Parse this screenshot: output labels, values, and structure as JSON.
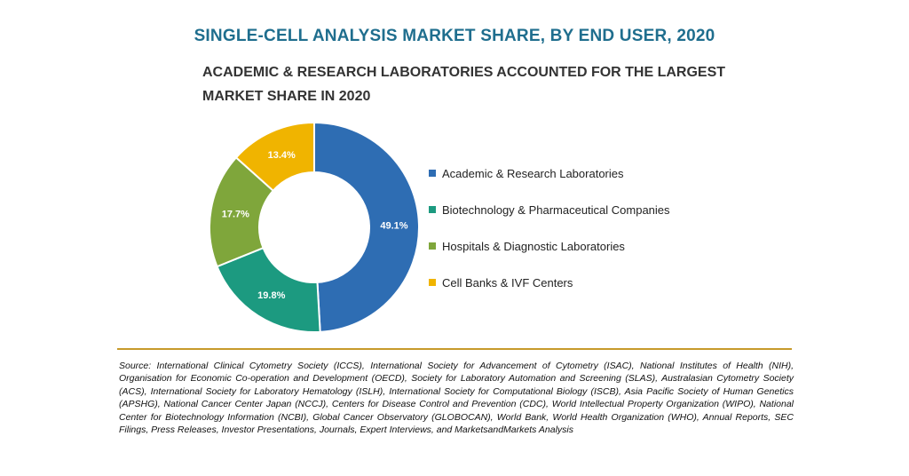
{
  "title": "SINGLE-CELL ANALYSIS MARKET SHARE, BY END USER, 2020",
  "subtitle_line1": "ACADEMIC & RESEARCH LABORATORIES ACCOUNTED FOR THE LARGEST",
  "subtitle_line2": "MARKET SHARE IN 2020",
  "source": "Source: International Clinical Cytometry Society (ICCS), International Society for Advancement of Cytometry (ISAC), National Institutes of Health (NIH), Organisation for Economic Co-operation and Development (OECD), Society for Laboratory Automation and Screening (SLAS), Australasian Cytometry Society (ACS), International Society for Laboratory Hematology (ISLH), International Society for Computational Biology (ISCB), Asia Pacific Society of Human Genetics (APSHG), National Cancer Center Japan (NCCJ), Centers for Disease Control and Prevention (CDC), World Intellectual Property Organization (WIPO), National Center for Biotechnology Information (NCBI), Global Cancer Observatory (GLOBOCAN), World Bank, World Health Organization (WHO), Annual Reports, SEC Filings, Press Releases, Investor Presentations, Journals, Expert Interviews, and MarketsandMarkets Analysis",
  "accent_rule_color": "#c79a2b",
  "chart_data": {
    "type": "pie",
    "donut": true,
    "legend_position": "right",
    "categories": [
      "Academic & Research Laboratories",
      "Biotechnology & Pharmaceutical Companies",
      "Hospitals & Diagnostic Laboratories",
      "Cell Banks & IVF Centers"
    ],
    "values": [
      49.1,
      19.8,
      17.7,
      13.4
    ],
    "data_labels": [
      "49.1%",
      "19.8%",
      "17.7%",
      "13.4%"
    ],
    "colors": [
      "#2e6db3",
      "#1c9a80",
      "#7fa63b",
      "#f0b400"
    ]
  }
}
